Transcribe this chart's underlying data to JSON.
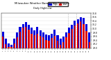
{
  "title": "Milwaukee Weather Barometric Pressure",
  "subtitle": "Daily High/Low",
  "bar_color_high": "#0000dd",
  "bar_color_low": "#dd0000",
  "background_color": "#ffffff",
  "ylim": [
    29.0,
    30.8
  ],
  "ytick_vals": [
    29.0,
    29.2,
    29.4,
    29.6,
    29.8,
    30.0,
    30.2,
    30.4,
    30.6,
    30.8
  ],
  "legend_high_label": "High",
  "legend_low_label": "Low",
  "dates": [
    "1",
    "2",
    "3",
    "4",
    "5",
    "6",
    "7",
    "8",
    "9",
    "10",
    "11",
    "12",
    "13",
    "14",
    "15",
    "16",
    "17",
    "18",
    "19",
    "20",
    "21",
    "22",
    "23",
    "24",
    "25",
    "26",
    "27",
    "28",
    "29",
    "30",
    "31"
  ],
  "highs": [
    29.85,
    29.5,
    29.25,
    29.15,
    29.5,
    29.8,
    30.1,
    30.25,
    30.35,
    30.2,
    30.05,
    29.9,
    30.1,
    29.9,
    29.8,
    29.7,
    29.65,
    29.75,
    29.95,
    29.65,
    29.5,
    29.6,
    29.8,
    30.05,
    30.2,
    30.4,
    30.5,
    30.6,
    30.55,
    30.25,
    29.8
  ],
  "lows": [
    29.6,
    29.2,
    29.05,
    29.05,
    29.25,
    29.55,
    29.85,
    30.05,
    30.1,
    29.95,
    29.75,
    29.65,
    29.72,
    29.62,
    29.55,
    29.42,
    29.37,
    29.52,
    29.62,
    29.37,
    29.17,
    29.32,
    29.57,
    29.77,
    29.97,
    30.17,
    30.27,
    30.37,
    30.22,
    29.87,
    29.3
  ]
}
